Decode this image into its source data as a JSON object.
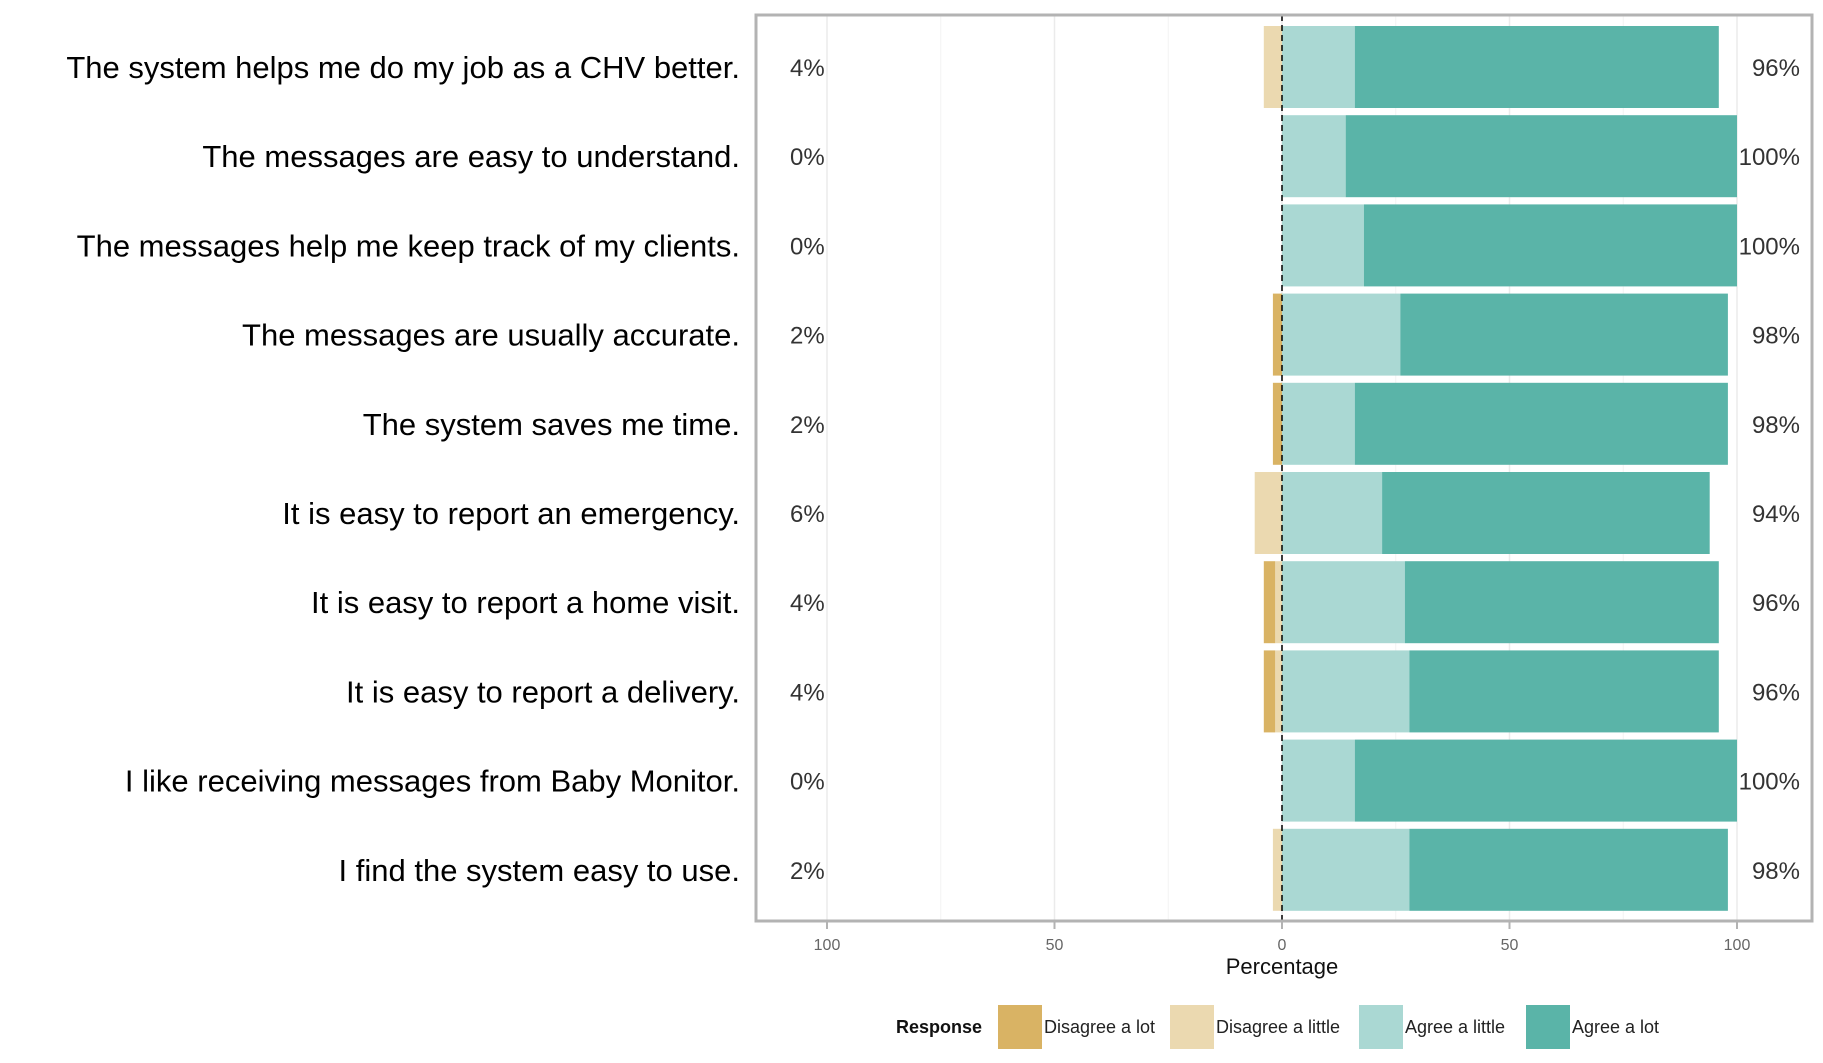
{
  "chart_data": {
    "type": "bar",
    "orientation": "horizontal",
    "stacked": "diverging",
    "xlabel": "Percentage",
    "xlim": [
      -100,
      100
    ],
    "xticks": [
      -100,
      -50,
      0,
      50,
      100
    ],
    "xtick_labels": [
      "100",
      "50",
      "0",
      "50",
      "100"
    ],
    "grid": true,
    "legend": {
      "title": "Response",
      "placement": "bottom",
      "entries": [
        {
          "name": "Disagree a lot",
          "color": "#D9B364"
        },
        {
          "name": "Disagree a little",
          "color": "#EBD9B0"
        },
        {
          "name": "Agree a little",
          "color": "#AAD8D3"
        },
        {
          "name": "Agree a lot",
          "color": "#5AB4A8"
        }
      ]
    },
    "categories": [
      "The system helps me do my job as a CHV better.",
      "The messages are easy to understand.",
      "The messages help me keep track of my clients.",
      "The messages are usually accurate.",
      "The system saves me time.",
      "It is easy to report an emergency.",
      "It is easy to report a home visit.",
      "It is easy to report a delivery.",
      "I like receiving messages from Baby Monitor.",
      "I find the system easy to use."
    ],
    "series": [
      {
        "name": "Disagree a lot",
        "values": [
          0,
          0,
          0,
          2,
          2,
          0,
          2.5,
          2.5,
          0,
          0
        ]
      },
      {
        "name": "Disagree a little",
        "values": [
          4,
          0,
          0,
          0,
          0,
          6,
          1.5,
          1.5,
          0,
          2
        ]
      },
      {
        "name": "Agree a little",
        "values": [
          16,
          14,
          18,
          26,
          16,
          22,
          27,
          28,
          16,
          28
        ]
      },
      {
        "name": "Agree a lot",
        "values": [
          80,
          86,
          82,
          72,
          82,
          72,
          69,
          68,
          84,
          70
        ]
      }
    ],
    "left_labels": [
      "4%",
      "0%",
      "0%",
      "2%",
      "2%",
      "6%",
      "4%",
      "4%",
      "0%",
      "2%"
    ],
    "right_labels": [
      "96%",
      "100%",
      "100%",
      "98%",
      "98%",
      "94%",
      "96%",
      "96%",
      "100%",
      "98%"
    ]
  }
}
